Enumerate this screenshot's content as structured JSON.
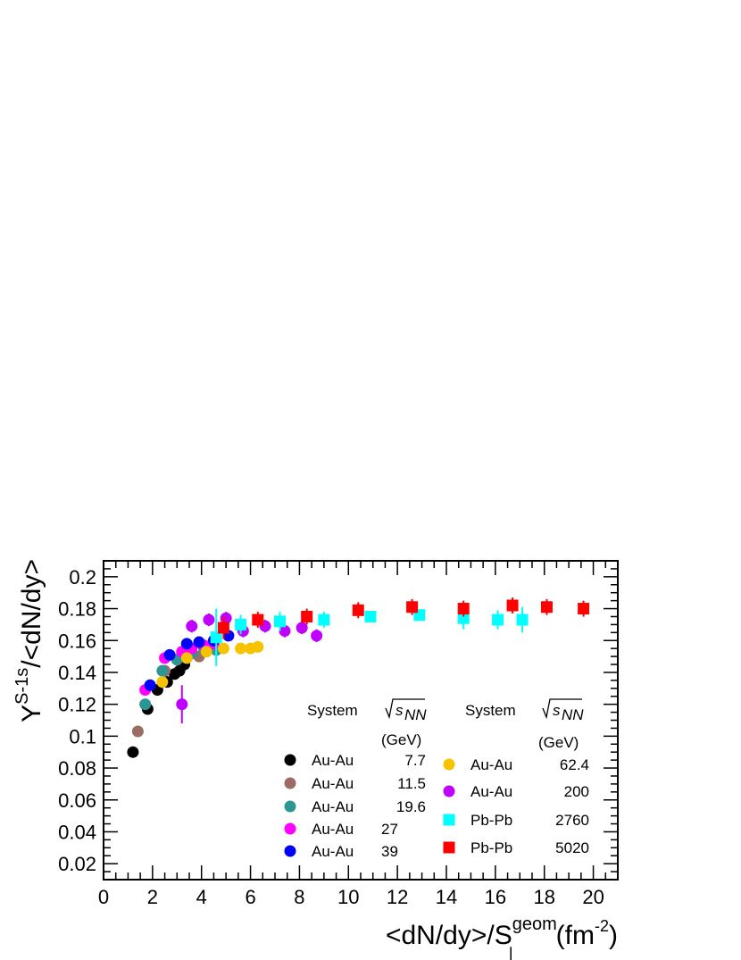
{
  "chart_data": {
    "type": "scatter",
    "title": "",
    "xlabel": {
      "main": "<dN/dy>/S",
      "sup": "geom",
      "sub": "⊥",
      "unit": "(fm",
      "unit_sup": "-2",
      "unit_close": ")"
    },
    "ylabel": {
      "main": "Y",
      "sup": "S-1s",
      "rest": "/<dN/dy>"
    },
    "xlim": [
      0,
      21
    ],
    "ylim": [
      0.01,
      0.21
    ],
    "xticks": [
      "0",
      "2",
      "4",
      "6",
      "8",
      "10",
      "12",
      "14",
      "16",
      "18",
      "20"
    ],
    "yticks": [
      "0.02",
      "0.04",
      "0.06",
      "0.08",
      "0.1",
      "0.12",
      "0.14",
      "0.16",
      "0.18",
      "0.2"
    ],
    "grid": false,
    "legend": {
      "placement": "bottom-right",
      "header_system": "System",
      "header_energy_symbol": "s",
      "header_energy_sub": "NN",
      "header_unit": "(GeV)"
    },
    "series": [
      {
        "name": "Au-Au",
        "energy": "7.7",
        "marker": "circle",
        "color": "#000000",
        "x": [
          1.2,
          1.8,
          2.2,
          2.6,
          2.9,
          3.1,
          3.3
        ],
        "y": [
          0.09,
          0.117,
          0.129,
          0.134,
          0.139,
          0.141,
          0.145
        ],
        "err": [
          0,
          0,
          0,
          0,
          0,
          0,
          0
        ]
      },
      {
        "name": "Au-Au",
        "energy": "11.5",
        "marker": "circle",
        "color": "#9c6b64",
        "x": [
          1.4,
          2.5,
          3.0,
          3.5,
          3.9
        ],
        "y": [
          0.103,
          0.141,
          0.148,
          0.151,
          0.15
        ],
        "err": [
          0,
          0,
          0,
          0,
          0
        ]
      },
      {
        "name": "Au-Au",
        "energy": "19.6",
        "marker": "circle",
        "color": "#2e9595",
        "x": [
          1.7,
          2.4,
          3.0,
          3.6,
          4.1,
          4.6
        ],
        "y": [
          0.12,
          0.141,
          0.148,
          0.152,
          0.155,
          0.154
        ],
        "err": [
          0,
          0,
          0,
          0,
          0,
          0
        ]
      },
      {
        "name": "Au-Au",
        "energy": "27",
        "marker": "circle",
        "color": "#ff00ff",
        "x": [
          1.7,
          2.5,
          3.2,
          3.6,
          4.1,
          4.5
        ],
        "y": [
          0.129,
          0.149,
          0.153,
          0.155,
          0.157,
          0.158
        ],
        "err": [
          0,
          0,
          0,
          0,
          0,
          0
        ]
      },
      {
        "name": "Au-Au",
        "energy": "39",
        "marker": "circle",
        "color": "#0000ff",
        "x": [
          1.9,
          2.7,
          3.4,
          3.9,
          4.5,
          5.1
        ],
        "y": [
          0.132,
          0.151,
          0.158,
          0.159,
          0.16,
          0.163
        ],
        "err": [
          0,
          0,
          0,
          0,
          0,
          0
        ]
      },
      {
        "name": "Au-Au",
        "energy": "62.4",
        "marker": "circle",
        "color": "#f7c200",
        "x": [
          2.4,
          3.4,
          4.2,
          4.9,
          5.6,
          6.0,
          6.3
        ],
        "y": [
          0.134,
          0.149,
          0.153,
          0.155,
          0.155,
          0.155,
          0.156
        ],
        "err": [
          0,
          0,
          0,
          0,
          0,
          0,
          0
        ]
      },
      {
        "name": "Au-Au",
        "energy": "200",
        "marker": "circle",
        "color": "#bf00ff",
        "x": [
          3.2,
          3.6,
          4.3,
          5.0,
          5.7,
          6.6,
          7.4,
          8.1,
          8.7
        ],
        "y": [
          0.12,
          0.169,
          0.173,
          0.174,
          0.166,
          0.169,
          0.166,
          0.168,
          0.163
        ],
        "err": [
          0.012,
          0.004,
          0.004,
          0.004,
          0.004,
          0.004,
          0.004,
          0.004,
          0.004
        ]
      },
      {
        "name": "Pb-Pb",
        "energy": "2760",
        "marker": "square",
        "color": "#00ffff",
        "x": [
          4.6,
          5.6,
          7.2,
          9.0,
          10.9,
          12.9,
          14.7,
          16.1,
          17.1
        ],
        "y": [
          0.162,
          0.17,
          0.172,
          0.173,
          0.175,
          0.176,
          0.174,
          0.173,
          0.173
        ],
        "err": [
          0.018,
          0.006,
          0.006,
          0.005,
          0.003,
          0.003,
          0.007,
          0.006,
          0.008
        ]
      },
      {
        "name": "Pb-Pb",
        "energy": "5020",
        "marker": "square",
        "color": "#ff0000",
        "x": [
          4.9,
          6.3,
          8.3,
          10.4,
          12.6,
          14.7,
          16.7,
          18.1,
          19.6
        ],
        "y": [
          0.168,
          0.173,
          0.175,
          0.179,
          0.181,
          0.18,
          0.182,
          0.181,
          0.18
        ],
        "err": [
          0.007,
          0.005,
          0.005,
          0.005,
          0.005,
          0.005,
          0.005,
          0.005,
          0.005
        ]
      }
    ]
  }
}
